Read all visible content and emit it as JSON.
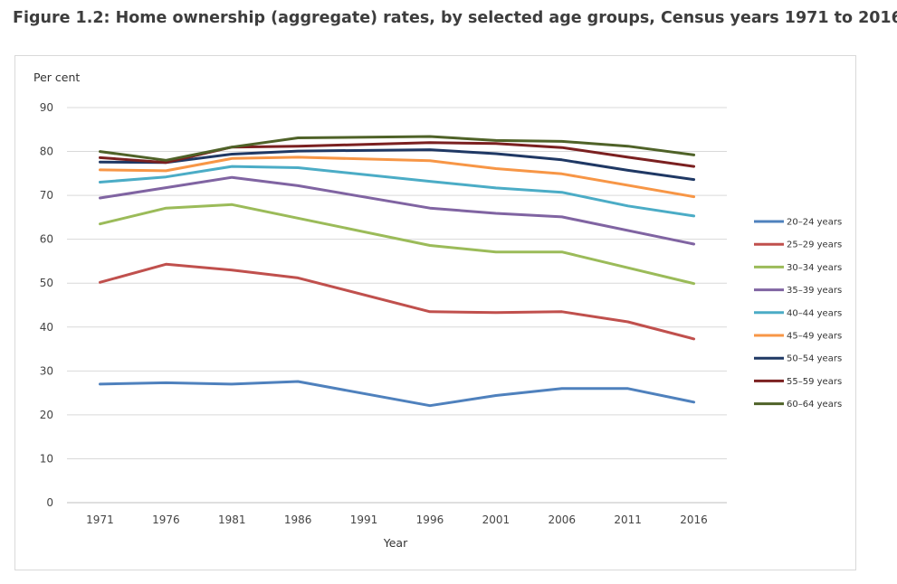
{
  "figure_title": "Figure 1.2: Home ownership (aggregate) rates, by selected age groups, Census years 1971 to 2016",
  "chart_data": {
    "type": "line",
    "title": "Figure 1.2: Home ownership (aggregate) rates, by selected age groups, Census years 1971 to 2016",
    "ylabel": "Per cent",
    "xlabel": "Year",
    "ylim": [
      0,
      90
    ],
    "yticks": [
      0,
      10,
      20,
      30,
      40,
      50,
      60,
      70,
      80,
      90
    ],
    "grid": true,
    "legend_position": "right",
    "x": [
      1971,
      1976,
      1981,
      1986,
      1991,
      1996,
      2001,
      2006,
      2011,
      2016
    ],
    "series": [
      {
        "name": "20–24 years",
        "color": "#4f81bd",
        "values": [
          27.0,
          27.3,
          27.0,
          27.6,
          null,
          22.1,
          24.4,
          26.0,
          26.0,
          22.9
        ]
      },
      {
        "name": "25–29 years",
        "color": "#c0504d",
        "values": [
          50.2,
          54.3,
          53.0,
          51.2,
          null,
          43.5,
          43.3,
          43.5,
          41.2,
          37.3
        ]
      },
      {
        "name": "30–34 years",
        "color": "#9bbb59",
        "values": [
          63.5,
          67.1,
          67.9,
          null,
          null,
          58.6,
          57.1,
          57.1,
          null,
          49.9
        ]
      },
      {
        "name": "35–39 years",
        "color": "#8064a2",
        "values": [
          69.4,
          null,
          74.1,
          72.2,
          null,
          67.1,
          65.9,
          65.1,
          null,
          58.9
        ]
      },
      {
        "name": "40–44 years",
        "color": "#4bacc6",
        "values": [
          73.0,
          74.2,
          76.6,
          76.3,
          null,
          73.2,
          71.7,
          70.7,
          67.6,
          65.3
        ]
      },
      {
        "name": "45–49 years",
        "color": "#f79646",
        "values": [
          75.8,
          75.6,
          78.4,
          78.7,
          null,
          77.9,
          76.1,
          74.9,
          null,
          69.7
        ]
      },
      {
        "name": "50–54 years",
        "color": "#1f3864",
        "values": [
          77.6,
          77.5,
          79.4,
          80.1,
          null,
          80.4,
          79.5,
          78.1,
          75.7,
          73.6
        ]
      },
      {
        "name": "55–59 years",
        "color": "#7b2020",
        "values": [
          78.6,
          77.5,
          81.0,
          81.2,
          null,
          82.0,
          81.8,
          80.9,
          78.7,
          76.6
        ]
      },
      {
        "name": "60–64 years",
        "color": "#4f6228",
        "values": [
          80.0,
          78.0,
          81.0,
          83.1,
          null,
          83.4,
          82.5,
          82.3,
          81.2,
          79.2
        ]
      }
    ]
  }
}
